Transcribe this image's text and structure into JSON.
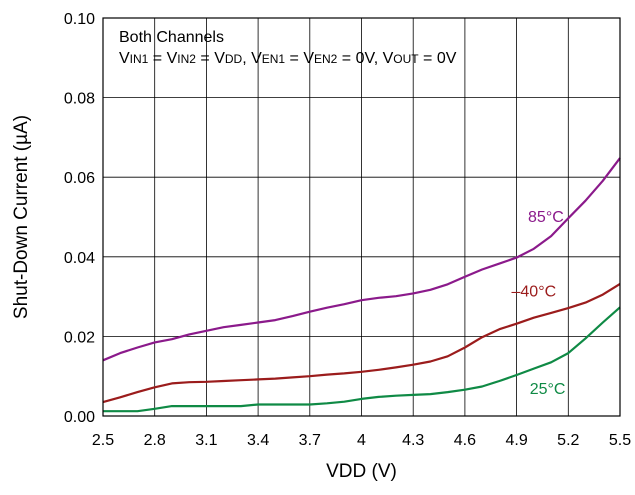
{
  "chart_data": {
    "type": "line",
    "xlabel": "VDD (V)",
    "ylabel": "Shut-Down Current (µA)",
    "xlim": [
      2.5,
      5.5
    ],
    "ylim": [
      0,
      0.1
    ],
    "x_ticks": [
      "2.5",
      "2.8",
      "3.1",
      "3.4",
      "3.7",
      "4",
      "4.3",
      "4.6",
      "4.9",
      "5.2",
      "5.5"
    ],
    "y_ticks": [
      "0.00",
      "0.02",
      "0.04",
      "0.06",
      "0.08",
      "0.10"
    ],
    "grid": true,
    "annotation_title": "Both Channels",
    "annotation_condition": {
      "parts": [
        {
          "t": "V"
        },
        {
          "t": "IN1",
          "sub": true
        },
        {
          "t": " = V"
        },
        {
          "t": "IN2",
          "sub": true
        },
        {
          "t": " = V"
        },
        {
          "t": "DD",
          "sub": true
        },
        {
          "t": ", V"
        },
        {
          "t": "EN1",
          "sub": true
        },
        {
          "t": " = V"
        },
        {
          "t": "EN2",
          "sub": true
        },
        {
          "t": " = 0V, V"
        },
        {
          "t": "OUT",
          "sub": true
        },
        {
          "t": " = 0V"
        }
      ]
    },
    "series": [
      {
        "name": "85°C",
        "color": "#8b1a8b",
        "x": [
          2.5,
          2.6,
          2.7,
          2.8,
          2.9,
          3.0,
          3.1,
          3.2,
          3.3,
          3.4,
          3.5,
          3.6,
          3.7,
          3.8,
          3.9,
          4.0,
          4.1,
          4.2,
          4.3,
          4.4,
          4.5,
          4.6,
          4.7,
          4.8,
          4.9,
          5.0,
          5.1,
          5.2,
          5.3,
          5.4,
          5.5
        ],
        "y": [
          0.014,
          0.0158,
          0.0172,
          0.0185,
          0.0193,
          0.0205,
          0.0214,
          0.0223,
          0.0229,
          0.0235,
          0.0241,
          0.0251,
          0.0262,
          0.0272,
          0.0281,
          0.0291,
          0.0297,
          0.0301,
          0.0308,
          0.0317,
          0.0331,
          0.035,
          0.0368,
          0.0383,
          0.0398,
          0.042,
          0.0452,
          0.0497,
          0.0541,
          0.0591,
          0.0648
        ]
      },
      {
        "name": "–40°C",
        "color": "#9b1c1c",
        "x": [
          2.5,
          2.6,
          2.7,
          2.8,
          2.9,
          3.0,
          3.1,
          3.2,
          3.3,
          3.4,
          3.5,
          3.6,
          3.7,
          3.8,
          3.9,
          4.0,
          4.1,
          4.2,
          4.3,
          4.4,
          4.5,
          4.6,
          4.7,
          4.8,
          4.9,
          5.0,
          5.1,
          5.2,
          5.3,
          5.4,
          5.5
        ],
        "y": [
          0.0035,
          0.0047,
          0.006,
          0.0072,
          0.0082,
          0.0085,
          0.0086,
          0.0088,
          0.009,
          0.0092,
          0.0094,
          0.0097,
          0.01,
          0.0104,
          0.0107,
          0.0111,
          0.0116,
          0.0122,
          0.0129,
          0.0137,
          0.015,
          0.0172,
          0.0198,
          0.0218,
          0.0232,
          0.0247,
          0.0259,
          0.0271,
          0.0285,
          0.0305,
          0.0332
        ]
      },
      {
        "name": "25°C",
        "color": "#0f8a45",
        "x": [
          2.5,
          2.6,
          2.7,
          2.8,
          2.9,
          3.0,
          3.1,
          3.2,
          3.3,
          3.4,
          3.5,
          3.6,
          3.7,
          3.8,
          3.9,
          4.0,
          4.1,
          4.2,
          4.3,
          4.4,
          4.5,
          4.6,
          4.7,
          4.8,
          4.9,
          5.0,
          5.1,
          5.2,
          5.3,
          5.4,
          5.5
        ],
        "y": [
          0.0012,
          0.0012,
          0.0012,
          0.0018,
          0.0025,
          0.0025,
          0.0025,
          0.0025,
          0.0025,
          0.0029,
          0.0029,
          0.0029,
          0.0029,
          0.0032,
          0.0036,
          0.0043,
          0.0048,
          0.0051,
          0.0053,
          0.0055,
          0.006,
          0.0066,
          0.0074,
          0.0088,
          0.0103,
          0.0119,
          0.0135,
          0.0158,
          0.0195,
          0.0235,
          0.0273
        ]
      }
    ]
  }
}
